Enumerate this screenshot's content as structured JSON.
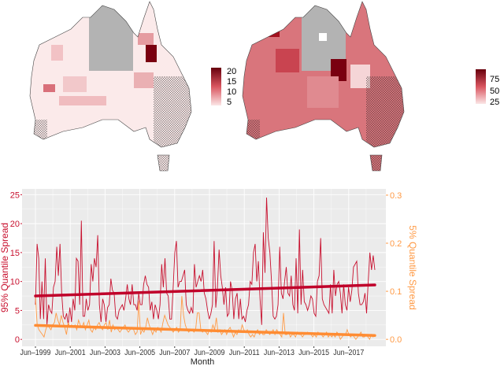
{
  "maps": [
    {
      "legend": {
        "ticks": [
          5,
          10,
          15,
          20
        ],
        "range": [
          0,
          22
        ],
        "color_low": "#fbe6e6",
        "color_high": "#67000d"
      },
      "missing_color": "#b3b3b3"
    },
    {
      "legend": {
        "ticks": [
          25,
          50,
          75
        ],
        "range": [
          10,
          90
        ],
        "color_low": "#fbe6e6",
        "color_high": "#67000d"
      },
      "missing_color": "#b3b3b3"
    }
  ],
  "chart_data": {
    "type": "line",
    "xlabel": "Month",
    "x_ticks": [
      "Jun–1999",
      "Jun–2001",
      "Jun–2003",
      "Jun–2005",
      "Jun–2007",
      "Jun–2009",
      "Jun–2011",
      "Jun–2013",
      "Jun–2015",
      "Jun–2017"
    ],
    "x_range": [
      "Jun-1999",
      "Dec-2018"
    ],
    "grid": true,
    "background": "#ebebeb",
    "left_axis": {
      "label": "95% Quantile Spread",
      "ticks": [
        0,
        5,
        10,
        15,
        20,
        25
      ],
      "range": [
        -1.2,
        26
      ],
      "color": "#c8102e"
    },
    "right_axis": {
      "label": "5% Quantile Spread",
      "ticks": [
        "0.0",
        "0.1",
        "0.2",
        "0.3"
      ],
      "range": [
        -0.0145,
        0.313
      ],
      "color": "#ff9a45"
    },
    "series": [
      {
        "axis": "left",
        "color": "#c8102e",
        "values": [
          6,
          16.5,
          14,
          3.5,
          10,
          3.5,
          14,
          2.5,
          6,
          5,
          4.5,
          9,
          10,
          16,
          11,
          16.5,
          8,
          4,
          3.5,
          4.5,
          2.5,
          5.5,
          3,
          7,
          5,
          14,
          13.5,
          6,
          20.5,
          4,
          4,
          7,
          5,
          6,
          13,
          10,
          14,
          12.5,
          18,
          6,
          3,
          7,
          6,
          3,
          5.5,
          6,
          10.5,
          8.5,
          8,
          4,
          3.5,
          5,
          5.5,
          6,
          5,
          7,
          9.5,
          7,
          6,
          9.5,
          6,
          6,
          5,
          8,
          6,
          6,
          9.5,
          11,
          9.5,
          9,
          5,
          6.5,
          3.5,
          6,
          5,
          3.5,
          6,
          13,
          9,
          14,
          8,
          7.5,
          3.5,
          3.5,
          9,
          15,
          17,
          9,
          10,
          10,
          11,
          12,
          6,
          5,
          4.5,
          5.5,
          4.5,
          13,
          9,
          10,
          11,
          10,
          12,
          8,
          7,
          5,
          3.5,
          4.5,
          6,
          17,
          5.5,
          9,
          15.5,
          11,
          9,
          6,
          9,
          4,
          4.5,
          10,
          8.5,
          3.5,
          7,
          8,
          3.5,
          7,
          3.5,
          4,
          3,
          5,
          6,
          10,
          9.5,
          15,
          16.5,
          10,
          13.5,
          7,
          2.5,
          18.5,
          11.5,
          24.5,
          17.5,
          15,
          10,
          4,
          3.5,
          4,
          6,
          16,
          8,
          7,
          10,
          12.5,
          8,
          7.5,
          11,
          6,
          5,
          14,
          4.5,
          19,
          6,
          12,
          6.5,
          6,
          5,
          6,
          7.5,
          7,
          4.5,
          4,
          10,
          11,
          17.5,
          7,
          6,
          5.5,
          5,
          4.5,
          9.5,
          4.5,
          12,
          7.5,
          9.5,
          10,
          8,
          4.5,
          9.5,
          6,
          5,
          9,
          6.5,
          8.5,
          12.5,
          13,
          13.5,
          8,
          6,
          6,
          6.5,
          8,
          4.5,
          10,
          15,
          12,
          14.5,
          12
        ]
      },
      {
        "axis": "right",
        "color": "#ff9a45",
        "values": [
          0.09,
          0.03,
          0.02,
          0.015,
          0.01,
          0.005,
          0.02,
          0.03,
          0.025,
          0.02,
          0.03,
          0.035,
          0.055,
          0.04,
          0.03,
          0.05,
          0.035,
          0.025,
          0.01,
          0.035,
          0.025,
          0.03,
          0.025,
          0.03,
          0.02,
          0.04,
          0.03,
          0.025,
          0.035,
          0.02,
          0.03,
          0.04,
          0.02,
          0.015,
          0.025,
          0.02,
          0.03,
          0.035,
          0.025,
          0.02,
          0.03,
          0.035,
          0.02,
          0.04,
          0.015,
          0.03,
          0.02,
          0.025,
          0.02,
          0.015,
          0.02,
          0.025,
          0.03,
          0.02,
          0.015,
          0.02,
          0.025,
          0.02,
          0.01,
          0.015,
          0.08,
          0.01,
          0.02,
          0.015,
          0.025,
          0.045,
          0.03,
          0.02,
          0.01,
          0.02,
          0.015,
          0.025,
          0.02,
          0.015,
          0.035,
          0.05,
          0.04,
          0.03,
          0.025,
          0.02,
          0.015,
          0.02,
          0.025,
          0.015,
          0.02,
          0.09,
          0.05,
          0.03,
          0.02,
          0.015,
          0.02,
          0.02,
          0.015,
          0.02,
          0.055,
          0.055,
          0.02,
          0.015,
          0.02,
          0.015,
          0.01,
          0.02,
          0.015,
          0.03,
          0.02,
          0.045,
          0.015,
          0.02,
          0.01,
          0.015,
          0.02,
          0.01,
          0.02,
          0.025,
          0.015,
          0.005,
          0.015,
          0.01,
          0.02,
          0.015,
          0.03,
          0.02,
          0.015,
          0.02,
          0.01,
          0.005,
          0.01,
          0.005,
          0.015,
          0.02,
          0.01,
          0.015,
          0.01,
          0.01,
          0.02,
          0.015,
          0.01,
          0.015,
          0.02,
          0.01,
          0.02,
          0.015,
          0.01,
          0.005,
          0.055,
          0.01,
          0.01,
          0.015,
          0.005,
          0.01,
          0.01,
          0.005,
          0.015,
          0.01,
          0.01,
          0.005,
          0.01,
          0.01,
          0.015,
          0.01,
          0.01,
          0.005,
          0.01,
          0.005,
          0.015,
          0.01,
          0.01,
          0.005,
          0.01,
          0.015,
          0.005,
          0.01,
          0.005,
          0.01,
          0.005,
          0.015,
          0.01,
          0.0,
          0.005,
          0.01,
          0.01,
          0.02,
          0.01,
          0.005,
          0.01,
          0.005,
          0.0,
          0.005,
          0.01,
          0.015,
          0.005,
          0.005,
          0.01,
          0.005,
          0.0,
          0.01,
          0.005,
          0.01
        ]
      }
    ],
    "trend_lines": [
      {
        "axis": "left",
        "color": "#c0002a",
        "from": 7.5,
        "to": 9.4
      },
      {
        "axis": "right",
        "color": "#ff8c33",
        "from": 0.029,
        "to": 0.008
      }
    ]
  }
}
